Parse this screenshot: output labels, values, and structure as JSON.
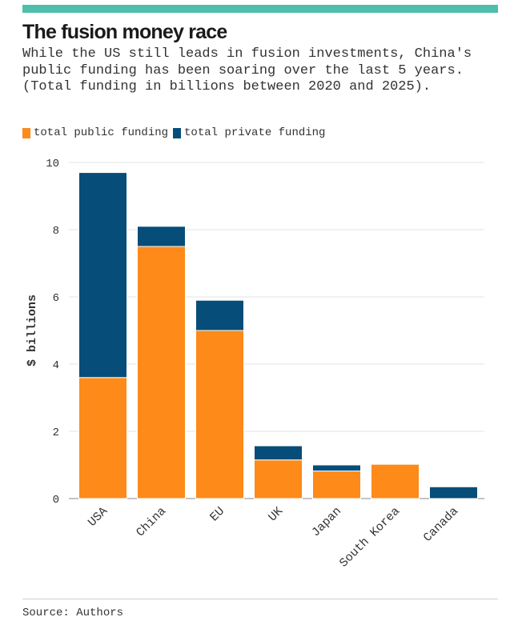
{
  "colors": {
    "accent": "#4dbfaa",
    "public": "#fd8a19",
    "private": "#064d79"
  },
  "title": "The fusion money race",
  "subtitle": "While the US still leads in fusion investments, China's public funding has been soaring over the last 5 years. (Total funding in billions between 2020 and 2025).",
  "legend": {
    "public_label": "total public funding",
    "private_label": "total private funding"
  },
  "source": "Source: Authors",
  "chart_data": {
    "type": "bar",
    "stacked": true,
    "title": "The fusion money race",
    "xlabel": "",
    "ylabel": "$ billions",
    "ylim": [
      0,
      10
    ],
    "yticks": [
      0,
      2,
      4,
      6,
      8,
      10
    ],
    "grid": true,
    "legend_position": "top-left",
    "categories": [
      "USA",
      "China",
      "EU",
      "UK",
      "Japan",
      "South Korea",
      "Canada"
    ],
    "series": [
      {
        "name": "total public funding",
        "values": [
          3.6,
          7.5,
          5.0,
          1.15,
          0.82,
          1.02,
          0.0
        ]
      },
      {
        "name": "total private funding",
        "values": [
          6.1,
          0.6,
          0.9,
          0.42,
          0.18,
          0.0,
          0.35
        ]
      }
    ]
  }
}
